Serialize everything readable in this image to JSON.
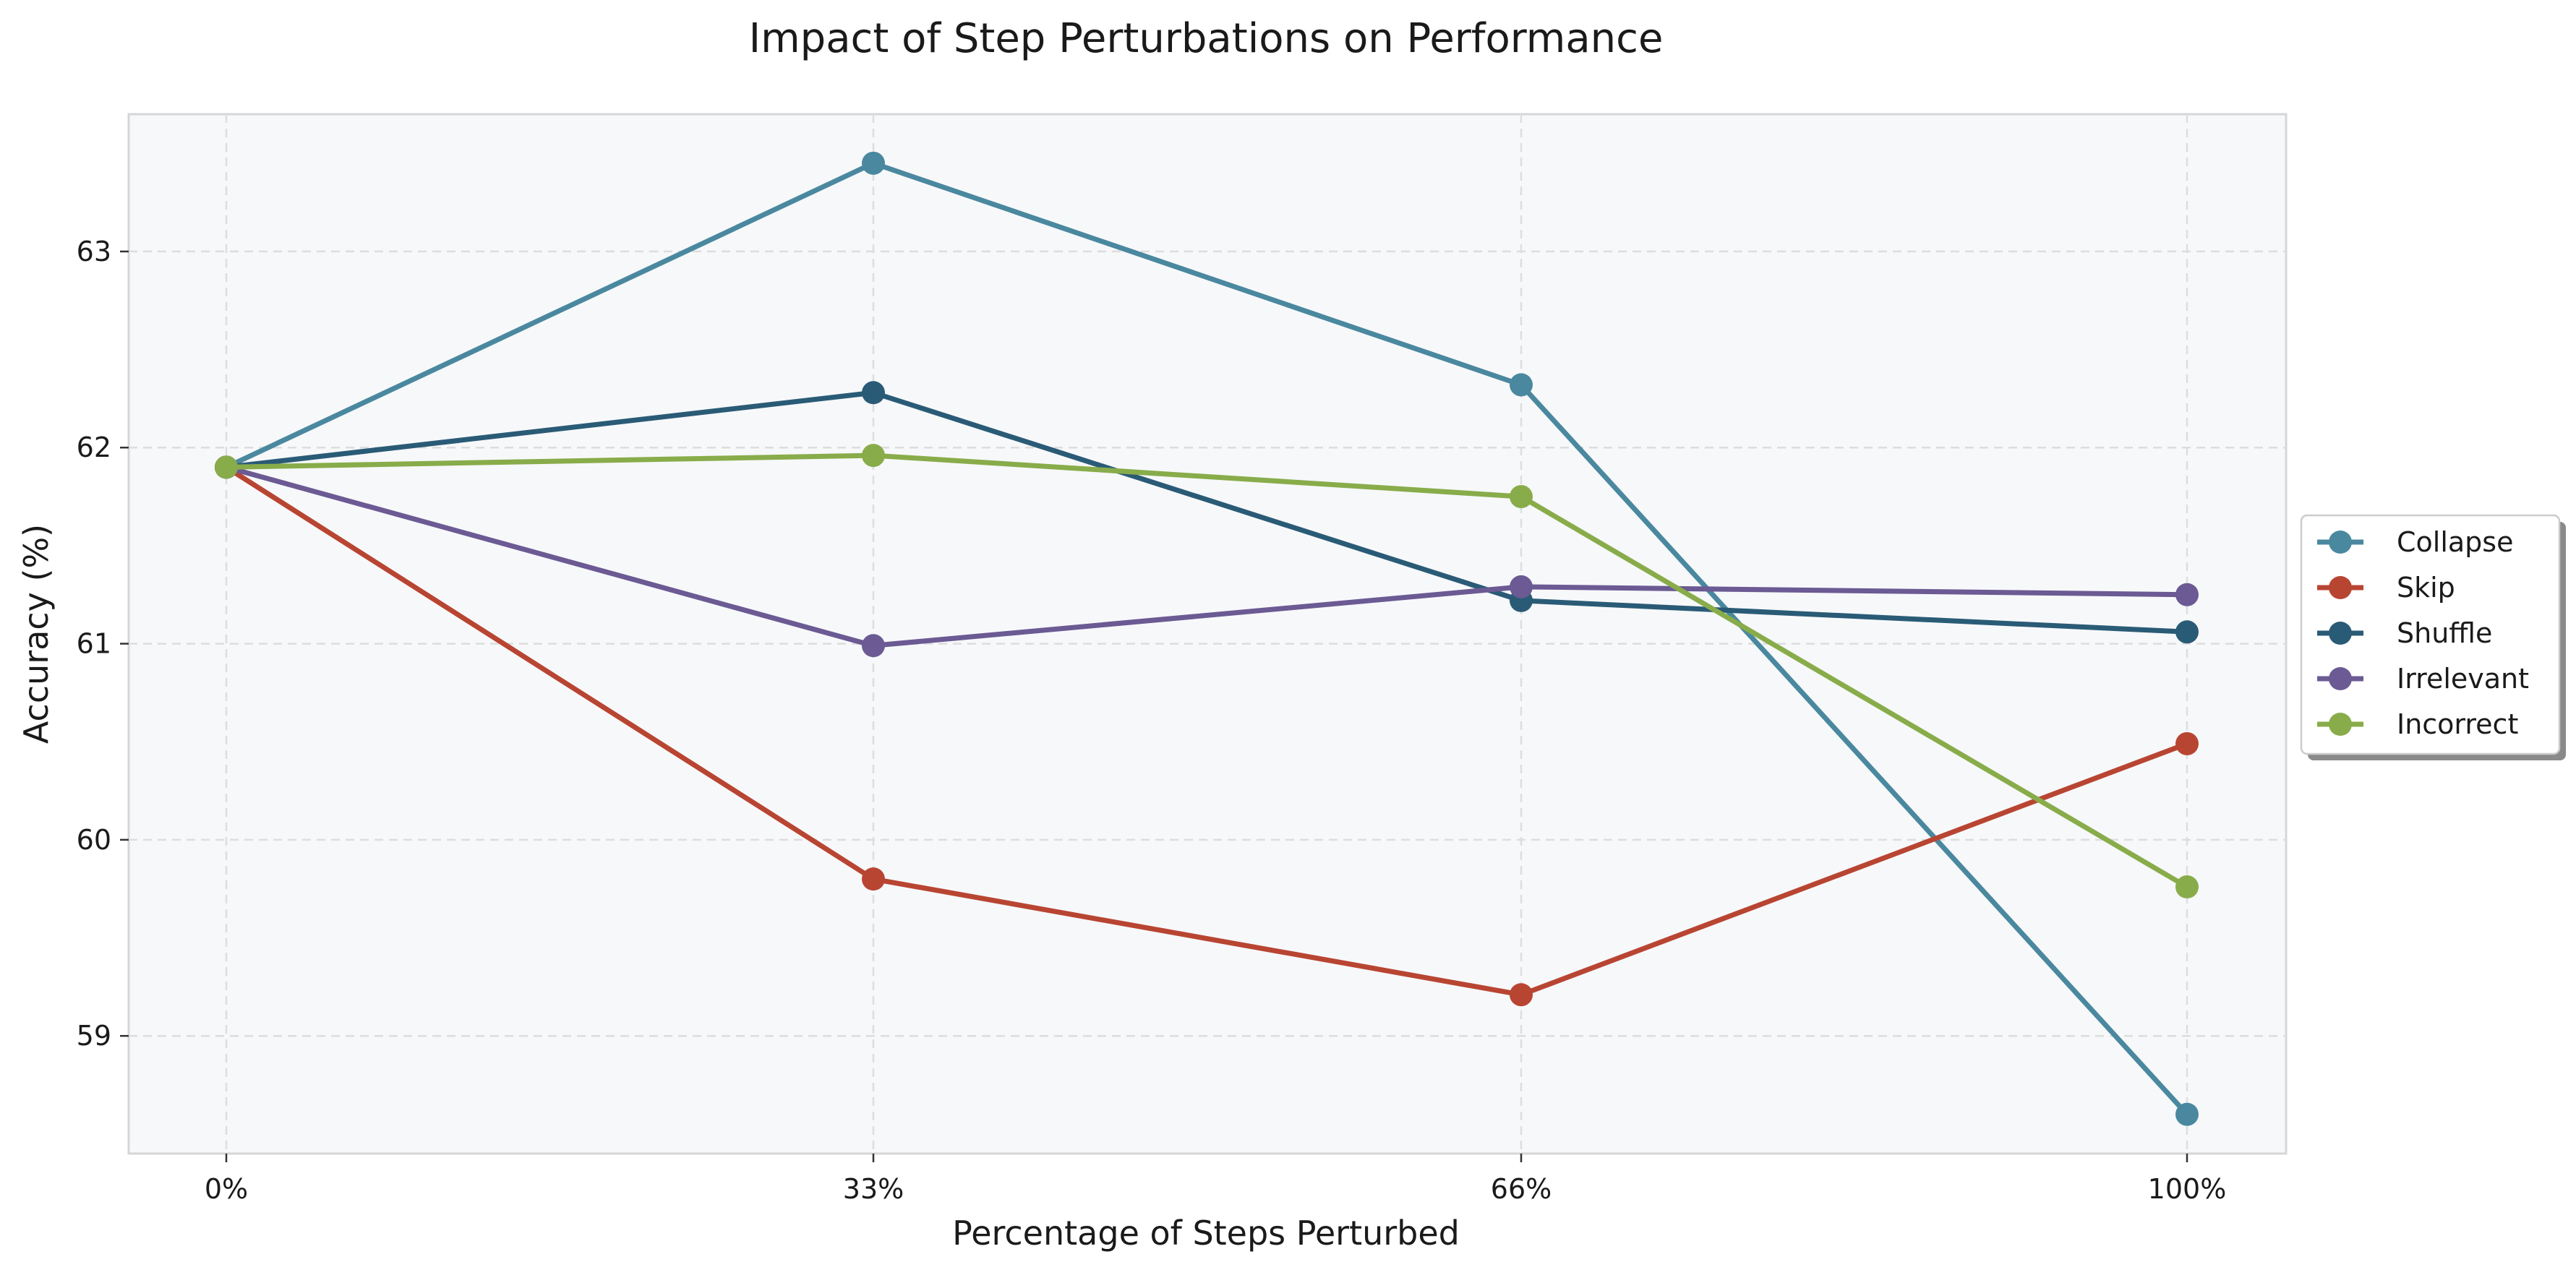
{
  "chart_data": {
    "type": "line",
    "title": "Impact of Step Perturbations on Performance",
    "xlabel": "Percentage of Steps Perturbed",
    "ylabel": "Accuracy (%)",
    "categories": [
      "0%",
      "33%",
      "66%",
      "100%"
    ],
    "ylim": [
      58.4,
      63.7
    ],
    "yticks": [
      59,
      60,
      61,
      62,
      63
    ],
    "grid": true,
    "legend_position": "right",
    "series": [
      {
        "name": "Collapse",
        "color": "#4a889f",
        "values": [
          61.9,
          63.45,
          62.32,
          58.6
        ]
      },
      {
        "name": "Skip",
        "color": "#b84532",
        "values": [
          61.9,
          59.8,
          59.21,
          60.49
        ]
      },
      {
        "name": "Shuffle",
        "color": "#2a5b76",
        "values": [
          61.9,
          62.28,
          61.22,
          61.06
        ]
      },
      {
        "name": "Irrelevant",
        "color": "#6b5a93",
        "values": [
          61.9,
          60.99,
          61.29,
          61.25
        ]
      },
      {
        "name": "Incorrect",
        "color": "#88ac4a",
        "values": [
          61.9,
          61.96,
          61.75,
          59.76
        ]
      }
    ]
  }
}
